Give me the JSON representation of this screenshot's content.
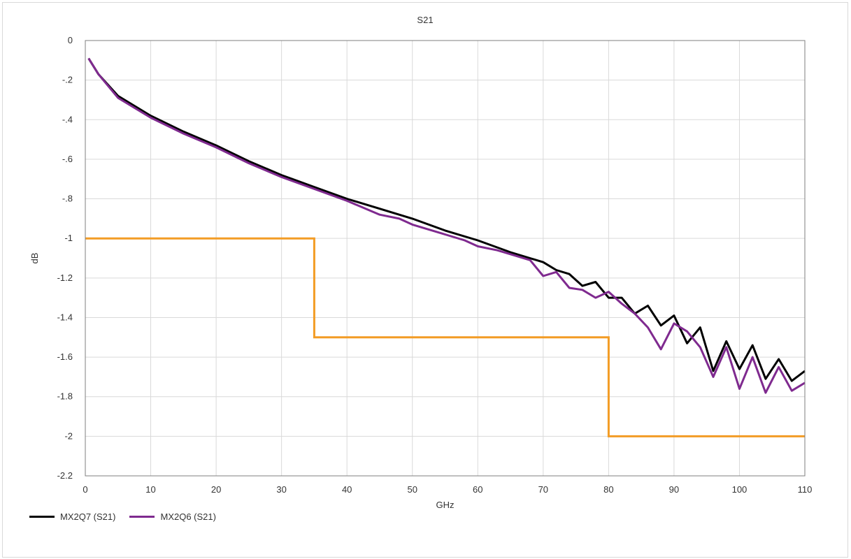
{
  "chart_data": {
    "type": "line",
    "title": "S21",
    "xlabel": "GHz",
    "ylabel": "dB",
    "xlim": [
      0,
      110
    ],
    "ylim": [
      -2.2,
      0
    ],
    "xticks": [
      0,
      10,
      20,
      30,
      40,
      50,
      60,
      70,
      80,
      90,
      100,
      110
    ],
    "yticks": [
      0,
      -0.2,
      -0.4,
      -0.6,
      -0.8,
      -1,
      -1.2,
      -1.4,
      -1.6,
      -1.8,
      -2,
      -2.2
    ],
    "ytick_labels": [
      "0",
      "-.2",
      "-.4",
      "-.6",
      "-.8",
      "-1",
      "-1.2",
      "-1.4",
      "-1.6",
      "-1.8",
      "-2",
      "-2.2"
    ],
    "grid": true,
    "legend_position": "bottom-left",
    "series": [
      {
        "name": "MX2Q7 (S21)",
        "color": "#000000",
        "x": [
          0.5,
          2,
          5,
          10,
          15,
          20,
          25,
          30,
          35,
          40,
          45,
          50,
          55,
          60,
          65,
          70,
          72,
          74,
          76,
          78,
          80,
          82,
          84,
          86,
          88,
          90,
          92,
          94,
          96,
          98,
          100,
          102,
          104,
          106,
          108,
          110
        ],
        "y": [
          -0.09,
          -0.17,
          -0.28,
          -0.38,
          -0.46,
          -0.53,
          -0.61,
          -0.68,
          -0.74,
          -0.8,
          -0.85,
          -0.9,
          -0.96,
          -1.01,
          -1.07,
          -1.12,
          -1.16,
          -1.18,
          -1.24,
          -1.22,
          -1.3,
          -1.3,
          -1.38,
          -1.34,
          -1.44,
          -1.39,
          -1.53,
          -1.45,
          -1.67,
          -1.52,
          -1.66,
          -1.54,
          -1.71,
          -1.61,
          -1.72,
          -1.67
        ]
      },
      {
        "name": "MX2Q6 (S21)",
        "color": "#7f2a8f",
        "x": [
          0.5,
          2,
          5,
          10,
          15,
          20,
          25,
          30,
          35,
          40,
          45,
          48,
          50,
          55,
          58,
          60,
          63,
          65,
          68,
          70,
          72,
          74,
          76,
          78,
          80,
          82,
          84,
          86,
          88,
          90,
          92,
          94,
          96,
          98,
          100,
          102,
          104,
          106,
          108,
          110
        ],
        "y": [
          -0.09,
          -0.17,
          -0.29,
          -0.39,
          -0.47,
          -0.54,
          -0.62,
          -0.69,
          -0.75,
          -0.81,
          -0.88,
          -0.9,
          -0.93,
          -0.98,
          -1.01,
          -1.04,
          -1.06,
          -1.08,
          -1.11,
          -1.19,
          -1.17,
          -1.25,
          -1.26,
          -1.3,
          -1.27,
          -1.33,
          -1.38,
          -1.45,
          -1.56,
          -1.43,
          -1.47,
          -1.55,
          -1.7,
          -1.55,
          -1.76,
          -1.6,
          -1.78,
          -1.65,
          -1.77,
          -1.73
        ]
      },
      {
        "name": "",
        "color": "#f39c25",
        "step": true,
        "x": [
          0,
          35,
          35,
          80,
          80,
          110
        ],
        "y": [
          -1,
          -1,
          -1.5,
          -1.5,
          -2,
          -2
        ]
      }
    ]
  }
}
